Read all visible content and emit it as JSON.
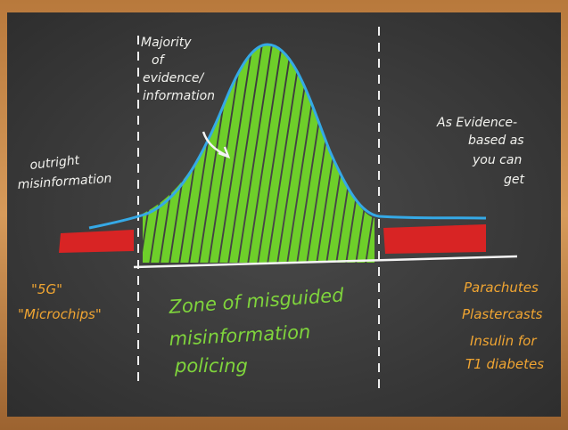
{
  "majority_label": [
    "Majority",
    "of",
    "evidence/",
    "information"
  ],
  "left_label": [
    "outright",
    "misinformation"
  ],
  "right_label": [
    "As Evidence-",
    "based as",
    "you can",
    "get"
  ],
  "left_examples": [
    "\"5G\"",
    "\"Microchips\""
  ],
  "zone_label": [
    "Zone of misguided",
    "misinformation",
    "policing"
  ],
  "right_examples": [
    "Parachutes",
    "Plastercasts",
    "Insulin for",
    "T1 diabetes"
  ]
}
